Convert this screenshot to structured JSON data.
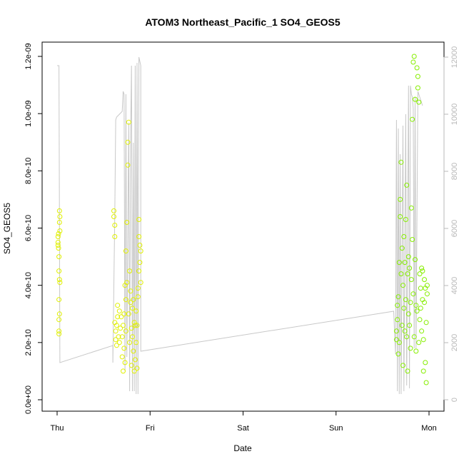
{
  "chart_data": {
    "type": "scatter",
    "title": "ATOM3 Northeast_Pacific_1 SO4_GEOS5",
    "xlabel": "Date",
    "ylabel": "SO4_GEOS5",
    "x_ticks": [
      "Thu",
      "Fri",
      "Sat",
      "Sun",
      "Mon"
    ],
    "xlim_days": [
      0,
      4
    ],
    "y_ticks": [
      "0.0e+00",
      "2.0e-10",
      "4.0e-10",
      "6.0e-10",
      "8.0e-10",
      "1.0e-09",
      "1.2e-09"
    ],
    "ylim": [
      0,
      1.2e-09
    ],
    "y2_ticks": [
      "0",
      "2000",
      "4000",
      "6000",
      "8000",
      "10000",
      "12000"
    ],
    "y2lim": [
      0,
      12000
    ],
    "colors": {
      "early": "#e0f000",
      "late": "#86ee00",
      "altitude": "#c8c8c8",
      "right_axis": "#b8b8b8"
    },
    "series": [
      {
        "values": [
          [
            0.01,
            5.5e-10
          ],
          [
            0.01,
            5.4e-10
          ],
          [
            0.01,
            5.7e-10
          ],
          [
            0.015,
            5.3e-10
          ],
          [
            0.015,
            5.8e-10
          ],
          [
            0.02,
            5e-10
          ],
          [
            0.02,
            4.5e-10
          ],
          [
            0.02,
            3.5e-10
          ],
          [
            0.02,
            2.8e-10
          ],
          [
            0.02,
            2.4e-10
          ],
          [
            0.02,
            2.3e-10
          ],
          [
            0.025,
            3e-10
          ],
          [
            0.025,
            4.2e-10
          ],
          [
            0.025,
            6.2e-10
          ],
          [
            0.025,
            6.6e-10
          ],
          [
            0.03,
            4.1e-10
          ],
          [
            0.03,
            5.9e-10
          ],
          [
            0.03,
            6.4e-10
          ],
          [
            0.61,
            6.6e-10
          ],
          [
            0.61,
            6.4e-10
          ],
          [
            0.62,
            6.1e-10
          ],
          [
            0.62,
            5.7e-10
          ],
          [
            0.62,
            2.7e-10
          ],
          [
            0.63,
            2.4e-10
          ],
          [
            0.63,
            2.1e-10
          ],
          [
            0.64,
            1.9e-10
          ],
          [
            0.64,
            2.6e-10
          ],
          [
            0.65,
            3.3e-10
          ],
          [
            0.65,
            2.9e-10
          ],
          [
            0.66,
            2.2e-10
          ],
          [
            0.67,
            3.1e-10
          ],
          [
            0.67,
            2e-10
          ],
          [
            0.68,
            2.5e-10
          ],
          [
            0.69,
            2.9e-10
          ],
          [
            0.7,
            2.2e-10
          ],
          [
            0.7,
            1.5e-10
          ],
          [
            0.71,
            1e-10
          ],
          [
            0.71,
            2.6e-10
          ],
          [
            0.72,
            3e-10
          ],
          [
            0.72,
            1.8e-10
          ],
          [
            0.73,
            1.3e-10
          ],
          [
            0.73,
            4e-10
          ],
          [
            0.74,
            3.5e-10
          ],
          [
            0.74,
            5.2e-10
          ],
          [
            0.74,
            2.4e-10
          ],
          [
            0.75,
            6.2e-10
          ],
          [
            0.75,
            4.1e-10
          ],
          [
            0.76,
            8.2e-10
          ],
          [
            0.76,
            9e-10
          ],
          [
            0.77,
            9.7e-10
          ],
          [
            0.77,
            3e-10
          ],
          [
            0.78,
            2e-10
          ],
          [
            0.78,
            4.5e-10
          ],
          [
            0.79,
            3.8e-10
          ],
          [
            0.79,
            3.4e-10
          ],
          [
            0.8,
            2.5e-10
          ],
          [
            0.8,
            1.2e-10
          ],
          [
            0.81,
            3.2e-10
          ],
          [
            0.81,
            2.2e-10
          ],
          [
            0.82,
            1.7e-10
          ],
          [
            0.82,
            3.5e-10
          ],
          [
            0.83,
            2.7e-10
          ],
          [
            0.83,
            1e-10
          ],
          [
            0.84,
            2.6e-10
          ],
          [
            0.84,
            1.4e-10
          ],
          [
            0.85,
            3.1e-10
          ],
          [
            0.85,
            2e-10
          ],
          [
            0.86,
            2.6e-10
          ],
          [
            0.86,
            1.1e-10
          ],
          [
            0.87,
            3.9e-10
          ],
          [
            0.87,
            3.6e-10
          ],
          [
            0.88,
            4.5e-10
          ],
          [
            0.88,
            5.7e-10
          ],
          [
            0.88,
            6.3e-10
          ],
          [
            0.89,
            5.4e-10
          ],
          [
            0.89,
            4.8e-10
          ],
          [
            0.9,
            5.2e-10
          ],
          [
            0.9,
            4.1e-10
          ]
        ]
      },
      {
        "values": [
          [
            3.65,
            2.4e-10
          ],
          [
            3.65,
            2.1e-10
          ],
          [
            3.66,
            3.3e-10
          ],
          [
            3.66,
            2.8e-10
          ],
          [
            3.67,
            1.6e-10
          ],
          [
            3.67,
            3.6e-10
          ],
          [
            3.68,
            4.8e-10
          ],
          [
            3.68,
            2e-10
          ],
          [
            3.69,
            7e-10
          ],
          [
            3.69,
            6.4e-10
          ],
          [
            3.7,
            8.3e-10
          ],
          [
            3.7,
            4.4e-10
          ],
          [
            3.71,
            5.3e-10
          ],
          [
            3.71,
            2.6e-10
          ],
          [
            3.72,
            1.2e-10
          ],
          [
            3.72,
            4e-10
          ],
          [
            3.73,
            3.2e-10
          ],
          [
            3.73,
            5.7e-10
          ],
          [
            3.74,
            4.8e-10
          ],
          [
            3.74,
            2.4e-10
          ],
          [
            3.75,
            6.3e-10
          ],
          [
            3.75,
            3.5e-10
          ],
          [
            3.76,
            2.2e-10
          ],
          [
            3.76,
            7.5e-10
          ],
          [
            3.77,
            1e-10
          ],
          [
            3.77,
            4.4e-10
          ],
          [
            3.78,
            5e-10
          ],
          [
            3.78,
            3e-10
          ],
          [
            3.79,
            2.6e-10
          ],
          [
            3.79,
            4.6e-10
          ],
          [
            3.8,
            3.4e-10
          ],
          [
            3.8,
            1.8e-10
          ],
          [
            3.81,
            6.7e-10
          ],
          [
            3.81,
            4.2e-10
          ],
          [
            3.82,
            5.6e-10
          ],
          [
            3.82,
            9.8e-10
          ],
          [
            3.83,
            1.18e-09
          ],
          [
            3.83,
            3.7e-10
          ],
          [
            3.84,
            1.2e-09
          ],
          [
            3.84,
            2.2e-10
          ],
          [
            3.85,
            1.05e-09
          ],
          [
            3.85,
            4.9e-10
          ],
          [
            3.86,
            3.3e-10
          ],
          [
            3.86,
            1.7e-10
          ],
          [
            3.87,
            3.1e-10
          ],
          [
            3.87,
            1.16e-09
          ],
          [
            3.88,
            1.13e-09
          ],
          [
            3.88,
            1.09e-09
          ],
          [
            3.89,
            1.04e-09
          ],
          [
            3.89,
            2e-10
          ],
          [
            3.9,
            4.4e-10
          ],
          [
            3.9,
            2.8e-10
          ],
          [
            3.91,
            3.9e-10
          ],
          [
            3.91,
            3.2e-10
          ],
          [
            3.92,
            4.6e-10
          ],
          [
            3.92,
            2.4e-10
          ],
          [
            3.93,
            3.5e-10
          ],
          [
            3.93,
            4.5e-10
          ],
          [
            3.94,
            2.1e-10
          ],
          [
            3.94,
            1e-10
          ],
          [
            3.95,
            3.4e-10
          ],
          [
            3.95,
            4.2e-10
          ],
          [
            3.96,
            3.9e-10
          ],
          [
            3.96,
            1.3e-10
          ],
          [
            3.97,
            6e-11
          ],
          [
            3.97,
            2.7e-10
          ],
          [
            3.98,
            3.7e-10
          ],
          [
            3.98,
            4e-10
          ]
        ]
      }
    ],
    "altitude": [
      [
        0.0,
        11700
      ],
      [
        0.0,
        11700
      ],
      [
        0.02,
        11700
      ],
      [
        0.03,
        1300
      ],
      [
        0.6,
        1900
      ],
      [
        0.6,
        1300
      ],
      [
        0.62,
        6500
      ],
      [
        0.63,
        9800
      ],
      [
        0.64,
        9900
      ],
      [
        0.7,
        10100
      ],
      [
        0.71,
        10800
      ],
      [
        0.72,
        10700
      ],
      [
        0.73,
        1000
      ],
      [
        0.74,
        10700
      ],
      [
        0.75,
        1500
      ],
      [
        0.77,
        9700
      ],
      [
        0.78,
        300
      ],
      [
        0.79,
        9200
      ],
      [
        0.8,
        11700
      ],
      [
        0.81,
        300
      ],
      [
        0.82,
        9000
      ],
      [
        0.83,
        300
      ],
      [
        0.84,
        11700
      ],
      [
        0.85,
        200
      ],
      [
        0.86,
        11800
      ],
      [
        0.87,
        200
      ],
      [
        0.88,
        12000
      ],
      [
        0.9,
        11700
      ],
      [
        0.9,
        11700
      ],
      [
        0.9,
        1700
      ],
      [
        3.62,
        3100
      ],
      [
        3.64,
        1600
      ],
      [
        3.65,
        9800
      ],
      [
        3.66,
        300
      ],
      [
        3.67,
        9500
      ],
      [
        3.68,
        200
      ],
      [
        3.69,
        8600
      ],
      [
        3.7,
        200
      ],
      [
        3.72,
        9600
      ],
      [
        3.73,
        300
      ],
      [
        3.75,
        10000
      ],
      [
        3.76,
        500
      ],
      [
        3.78,
        11000
      ],
      [
        3.79,
        400
      ],
      [
        3.8,
        11000
      ],
      [
        3.81,
        10700
      ],
      [
        3.82,
        10600
      ],
      [
        3.83,
        10200
      ],
      [
        3.84,
        1800
      ],
      [
        3.85,
        10600
      ],
      [
        3.86,
        1800
      ],
      [
        3.88,
        10800
      ],
      [
        3.9,
        10600
      ],
      [
        3.93,
        10300
      ]
    ]
  }
}
